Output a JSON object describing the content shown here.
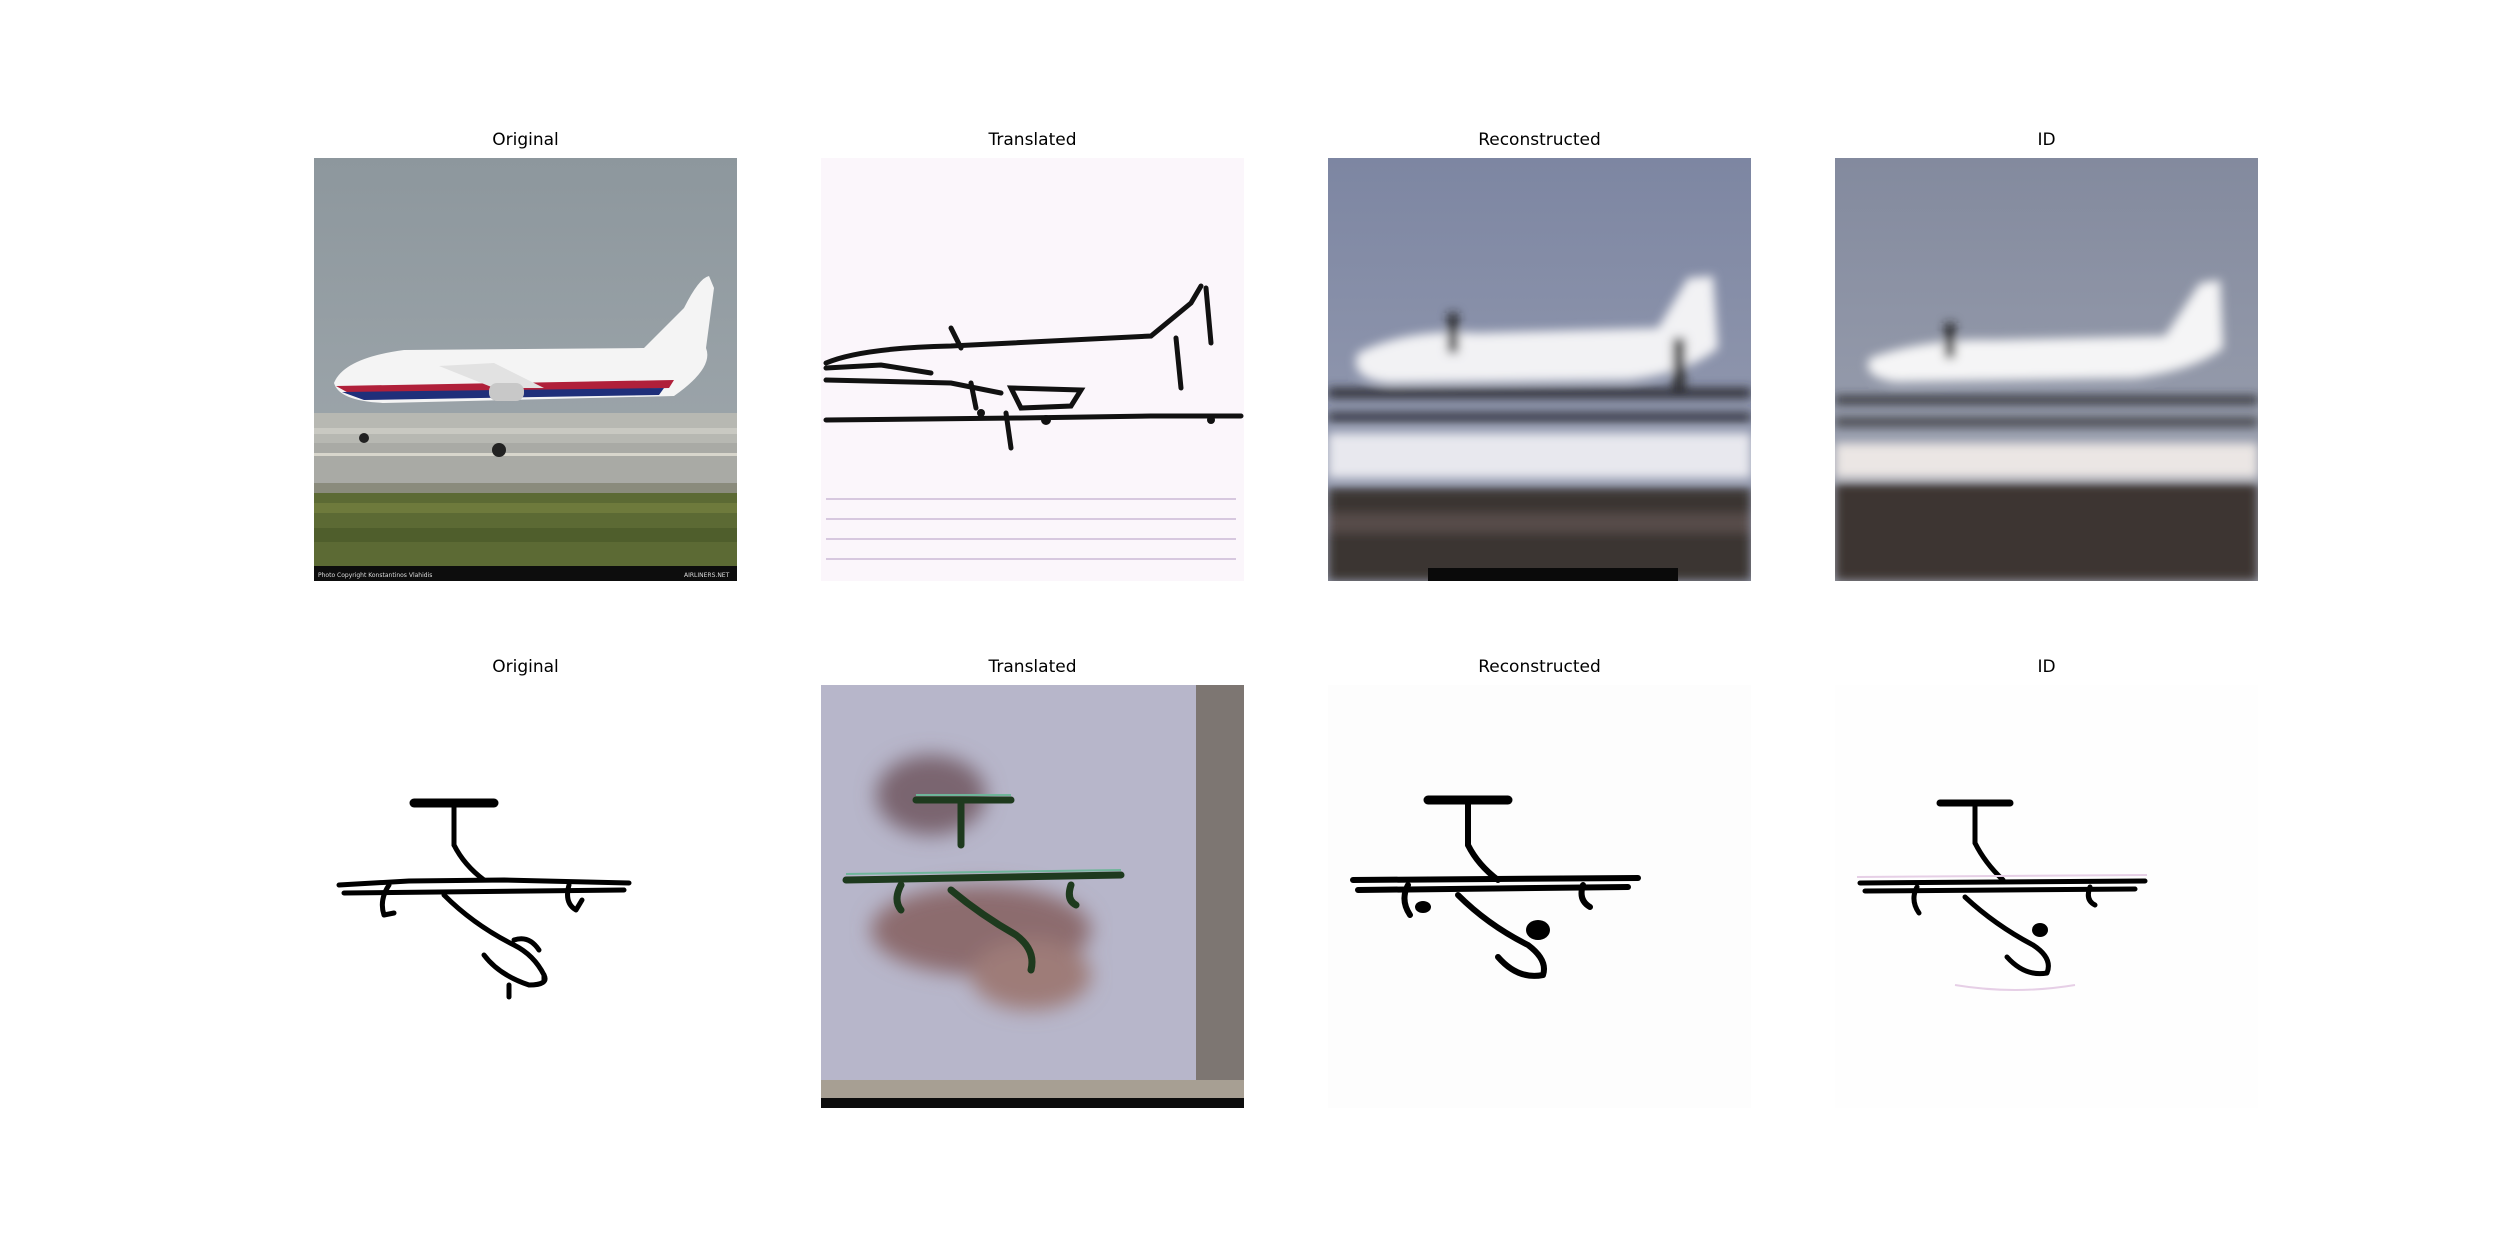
{
  "rows": [
    {
      "panels": [
        {
          "title": "Original",
          "image": "photo-airliner-on-runway"
        },
        {
          "title": "Translated",
          "image": "sketch-airliner-outline"
        },
        {
          "title": "Reconstructed",
          "image": "blurry-airliner-photo"
        },
        {
          "title": "ID",
          "image": "blurry-airliner-photo"
        }
      ],
      "watermark_left": "Photo Copyright Konstantinos Vlahidis",
      "watermark_right": "AIRLINERS.NET"
    },
    {
      "panels": [
        {
          "title": "Original",
          "image": "line-sketch-propeller-plane"
        },
        {
          "title": "Translated",
          "image": "noisy-photo-propeller-plane"
        },
        {
          "title": "Reconstructed",
          "image": "line-sketch-propeller-plane"
        },
        {
          "title": "ID",
          "image": "line-sketch-propeller-plane"
        }
      ]
    }
  ]
}
